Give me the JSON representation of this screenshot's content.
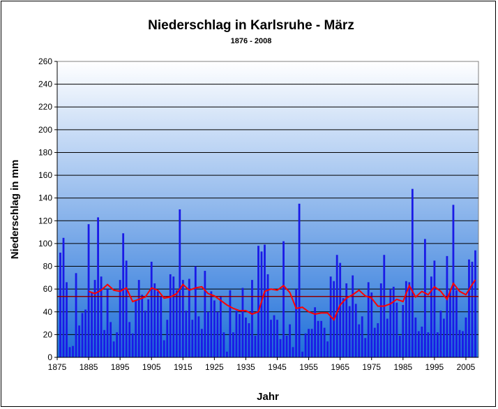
{
  "chart_data": {
    "type": "bar",
    "title": "Niederschlag in Karlsruhe - März",
    "subtitle": "1876 - 2008",
    "xlabel": "Jahr",
    "ylabel": "Niederschlag in mm",
    "xlim": [
      1875,
      2009
    ],
    "ylim": [
      0,
      260
    ],
    "yticks": [
      0,
      20,
      40,
      60,
      80,
      100,
      120,
      140,
      160,
      180,
      200,
      220,
      240,
      260
    ],
    "xticks": [
      1875,
      1885,
      1895,
      1905,
      1915,
      1925,
      1935,
      1945,
      1955,
      1965,
      1975,
      1985,
      1995,
      2005
    ],
    "grid": true,
    "legend": "none",
    "colors": {
      "bars": "#1a1ae6",
      "moving_average": "#ff0000",
      "long_term_mean": "#8b0000",
      "plot_bg_top": "#ffffff",
      "plot_bg_bottom": "#1e6fd9"
    },
    "series": [
      {
        "type": "bar",
        "x": [
          1876,
          1877,
          1878,
          1879,
          1880,
          1881,
          1882,
          1883,
          1884,
          1885,
          1886,
          1887,
          1888,
          1889,
          1890,
          1891,
          1892,
          1893,
          1894,
          1895,
          1896,
          1897,
          1898,
          1899,
          1900,
          1901,
          1902,
          1903,
          1904,
          1905,
          1906,
          1907,
          1908,
          1909,
          1910,
          1911,
          1912,
          1913,
          1914,
          1915,
          1916,
          1917,
          1918,
          1919,
          1920,
          1921,
          1922,
          1923,
          1924,
          1925,
          1926,
          1927,
          1928,
          1929,
          1930,
          1931,
          1932,
          1933,
          1934,
          1935,
          1936,
          1937,
          1938,
          1939,
          1940,
          1941,
          1942,
          1943,
          1944,
          1945,
          1946,
          1947,
          1948,
          1949,
          1950,
          1951,
          1952,
          1953,
          1954,
          1955,
          1956,
          1957,
          1958,
          1959,
          1960,
          1961,
          1962,
          1963,
          1964,
          1965,
          1966,
          1967,
          1968,
          1969,
          1970,
          1971,
          1972,
          1973,
          1974,
          1975,
          1976,
          1977,
          1978,
          1979,
          1980,
          1981,
          1982,
          1983,
          1984,
          1985,
          1986,
          1987,
          1988,
          1989,
          1990,
          1991,
          1992,
          1993,
          1994,
          1995,
          1996,
          1997,
          1998,
          1999,
          2000,
          2001,
          2002,
          2003,
          2004,
          2005,
          2006,
          2007,
          2008
        ],
        "values": [
          92,
          105,
          66,
          9,
          10,
          74,
          28,
          39,
          42,
          117,
          57,
          68,
          123,
          71,
          24,
          60,
          31,
          14,
          22,
          68,
          109,
          85,
          31,
          21,
          50,
          68,
          55,
          41,
          51,
          84,
          65,
          58,
          54,
          15,
          33,
          73,
          71,
          59,
          130,
          68,
          41,
          69,
          33,
          80,
          36,
          25,
          76,
          40,
          58,
          50,
          40,
          54,
          22,
          5,
          59,
          22,
          41,
          38,
          61,
          35,
          30,
          68,
          19,
          98,
          93,
          99,
          73,
          33,
          37,
          33,
          16,
          102,
          19,
          29,
          9,
          60,
          135,
          5,
          21,
          25,
          25,
          44,
          32,
          32,
          26,
          14,
          71,
          67,
          90,
          83,
          52,
          65,
          45,
          72,
          47,
          29,
          36,
          17,
          66,
          57,
          26,
          30,
          65,
          90,
          34,
          60,
          62,
          48,
          19,
          46,
          67,
          66,
          148,
          35,
          23,
          27,
          104,
          22,
          71,
          85,
          22,
          41,
          34,
          89,
          60,
          134,
          59,
          24,
          23,
          35,
          86,
          84,
          94
        ]
      },
      {
        "type": "line",
        "name": "moving average",
        "x": [
          1885,
          1887,
          1889,
          1891,
          1893,
          1895,
          1897,
          1899,
          1901,
          1903,
          1905,
          1907,
          1909,
          1911,
          1913,
          1915,
          1917,
          1919,
          1921,
          1923,
          1925,
          1927,
          1929,
          1931,
          1933,
          1935,
          1937,
          1939,
          1941,
          1943,
          1945,
          1947,
          1949,
          1951,
          1953,
          1955,
          1957,
          1959,
          1961,
          1963,
          1965,
          1967,
          1969,
          1971,
          1973,
          1975,
          1977,
          1979,
          1981,
          1983,
          1985,
          1987,
          1989,
          1991,
          1993,
          1995,
          1997,
          1999,
          2001,
          2003,
          2005,
          2007,
          2008
        ],
        "values": [
          58,
          56,
          59,
          64,
          59,
          58,
          61,
          49,
          51,
          53,
          61,
          59,
          52,
          53,
          56,
          64,
          59,
          61,
          62,
          56,
          54,
          50,
          46,
          43,
          41,
          41,
          38,
          40,
          58,
          60,
          59,
          63,
          57,
          43,
          44,
          40,
          38,
          39,
          39,
          33,
          46,
          52,
          55,
          59,
          54,
          52,
          45,
          45,
          47,
          51,
          49,
          63,
          53,
          58,
          55,
          62,
          58,
          51,
          65,
          58,
          55,
          64,
          68
        ]
      },
      {
        "type": "hline",
        "name": "long-term mean",
        "value": 53.5
      }
    ]
  }
}
